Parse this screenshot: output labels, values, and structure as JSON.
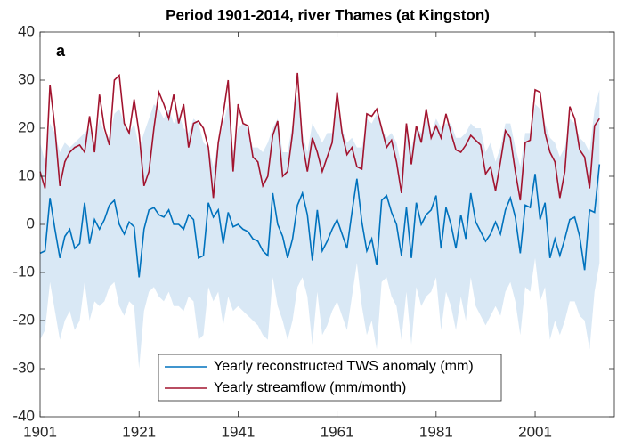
{
  "chart_data": {
    "type": "line",
    "title": "Period 1901-2014, river Thames (at Kingston)",
    "annotation": "a",
    "x": [
      1901,
      1902,
      1903,
      1904,
      1905,
      1906,
      1907,
      1908,
      1909,
      1910,
      1911,
      1912,
      1913,
      1914,
      1915,
      1916,
      1917,
      1918,
      1919,
      1920,
      1921,
      1922,
      1923,
      1924,
      1925,
      1926,
      1927,
      1928,
      1929,
      1930,
      1931,
      1932,
      1933,
      1934,
      1935,
      1936,
      1937,
      1938,
      1939,
      1940,
      1941,
      1942,
      1943,
      1944,
      1945,
      1946,
      1947,
      1948,
      1949,
      1950,
      1951,
      1952,
      1953,
      1954,
      1955,
      1956,
      1957,
      1958,
      1959,
      1960,
      1961,
      1962,
      1963,
      1964,
      1965,
      1966,
      1967,
      1968,
      1969,
      1970,
      1971,
      1972,
      1973,
      1974,
      1975,
      1976,
      1977,
      1978,
      1979,
      1980,
      1981,
      1982,
      1983,
      1984,
      1985,
      1986,
      1987,
      1988,
      1989,
      1990,
      1991,
      1992,
      1993,
      1994,
      1995,
      1996,
      1997,
      1998,
      1999,
      2000,
      2001,
      2002,
      2003,
      2004,
      2005,
      2006,
      2007,
      2008,
      2009,
      2010,
      2011,
      2012,
      2013,
      2014
    ],
    "band": {
      "color": "#d9e8f5",
      "upper": [
        17,
        13,
        21,
        19,
        15,
        17,
        16,
        17,
        18,
        19,
        20,
        17,
        22,
        19,
        18,
        23,
        24,
        21,
        19,
        21,
        16,
        19,
        22,
        25,
        24,
        22,
        24,
        21,
        23,
        20,
        19,
        22,
        21,
        17,
        16,
        12,
        17,
        21,
        25,
        15,
        20,
        21,
        20,
        16,
        16,
        15,
        17,
        20,
        22,
        15,
        15,
        21,
        27,
        19,
        15,
        21,
        19,
        17,
        19,
        19,
        24,
        20,
        17,
        18,
        16,
        16,
        22,
        21,
        23,
        20,
        18,
        19,
        17,
        12,
        20,
        16,
        20,
        19,
        22,
        19,
        22,
        20,
        21,
        21,
        18,
        18,
        19,
        21,
        20,
        20,
        15,
        17,
        13,
        16,
        21,
        21,
        16,
        12,
        19,
        19,
        25,
        24,
        21,
        18,
        17,
        14,
        16,
        22,
        21,
        18,
        17,
        15,
        24,
        28
      ],
      "lower": [
        -24,
        -22,
        -12,
        -18,
        -24,
        -20,
        -18,
        -22,
        -20,
        -12,
        -20,
        -16,
        -17,
        -16,
        -13,
        -12,
        -17,
        -19,
        -16,
        -17,
        -30,
        -18,
        -14,
        -13,
        -15,
        -16,
        -14,
        -17,
        -17,
        -18,
        -15,
        -16,
        -24,
        -23,
        -13,
        -16,
        -14,
        -21,
        -15,
        -18,
        -17,
        -18,
        -19,
        -20,
        -21,
        -23,
        -24,
        -11,
        -17,
        -20,
        -24,
        -20,
        -13,
        -11,
        -15,
        -25,
        -14,
        -23,
        -21,
        -18,
        -16,
        -19,
        -22,
        -15,
        -8,
        -17,
        -23,
        -20,
        -26,
        -12,
        -11,
        -15,
        -17,
        -24,
        -14,
        -25,
        -13,
        -17,
        -15,
        -14,
        -11,
        -22,
        -14,
        -17,
        -22,
        -15,
        -20,
        -11,
        -17,
        -19,
        -21,
        -19,
        -17,
        -19,
        -14,
        -12,
        -16,
        -23,
        -13,
        -14,
        -7,
        -16,
        -13,
        -24,
        -20,
        -23,
        -20,
        -16,
        -16,
        -19,
        -20,
        -26,
        -14,
        -8
      ]
    },
    "series": [
      {
        "name": "Yearly reconstructed TWS anomaly (mm)",
        "color": "#0072bd",
        "values": [
          -6,
          -5.5,
          5.5,
          -1,
          -7,
          -2.5,
          -1,
          -5,
          -4,
          4.5,
          -4,
          1,
          -1,
          1,
          4,
          5,
          0,
          -2,
          0.5,
          -0.5,
          -11,
          -1,
          3,
          3.5,
          2,
          1.5,
          3,
          0,
          0,
          -1,
          2,
          1,
          -7,
          -6.5,
          4.5,
          1.5,
          3,
          -4,
          2.5,
          -0.5,
          0,
          -1,
          -1.5,
          -3,
          -3.5,
          -5.5,
          -6.5,
          6.5,
          0,
          -2.5,
          -7,
          -3,
          4,
          6.5,
          2,
          -7.5,
          3,
          -5.5,
          -3.5,
          -1,
          1,
          -2,
          -5,
          2.5,
          9.5,
          0.5,
          -5.5,
          -3,
          -8.5,
          5,
          6,
          2.5,
          0,
          -6.5,
          3.5,
          -7,
          4.5,
          0,
          2,
          3,
          6,
          -5,
          3.5,
          0,
          -5,
          2,
          -3,
          6.5,
          0.5,
          -1.5,
          -3.5,
          -2,
          0.5,
          -2,
          3,
          5.5,
          1.5,
          -6,
          4,
          3.5,
          10.5,
          1,
          4.5,
          -7,
          -3,
          -6.5,
          -3,
          1,
          1.5,
          -2.5,
          -9.5,
          3,
          2.5,
          12.5
        ]
      },
      {
        "name": "Yearly streamflow (mm/month)",
        "color": "#a2142f",
        "values": [
          11,
          7.5,
          29,
          20,
          8,
          13,
          15,
          16,
          16.5,
          15,
          22.5,
          15,
          27,
          20,
          16.5,
          30,
          31,
          21,
          19,
          26,
          19,
          8,
          11,
          20,
          27.5,
          25,
          22,
          27,
          21,
          25,
          16,
          21,
          21.5,
          20,
          16,
          5.5,
          17,
          23,
          30,
          11,
          25,
          21,
          20.5,
          14,
          13,
          8,
          10,
          18.5,
          21.5,
          10,
          11,
          19,
          31.5,
          17,
          11,
          18,
          15,
          11,
          14,
          17,
          27.5,
          19,
          14.5,
          16,
          12,
          11.5,
          23,
          22.5,
          24,
          20,
          16,
          17.5,
          13,
          6.5,
          21,
          12.5,
          20.5,
          17,
          24,
          18,
          20.5,
          18,
          23,
          19,
          15.5,
          15,
          16.5,
          18.5,
          17.5,
          16.5,
          10.5,
          12,
          7,
          13,
          19.5,
          18,
          11,
          5,
          17,
          17.5,
          28,
          27.5,
          19,
          15,
          13,
          5.5,
          11,
          24.5,
          22,
          15.5,
          14,
          7.5,
          20.5,
          22
        ]
      }
    ],
    "xlim": [
      1901,
      2017
    ],
    "xticks": [
      1901,
      1921,
      1941,
      1961,
      1981,
      2001
    ],
    "ylim": [
      -40,
      40
    ],
    "yticks": [
      -40,
      -30,
      -20,
      -10,
      0,
      10,
      20,
      30,
      40
    ],
    "grid": false,
    "legend": "bottom"
  }
}
